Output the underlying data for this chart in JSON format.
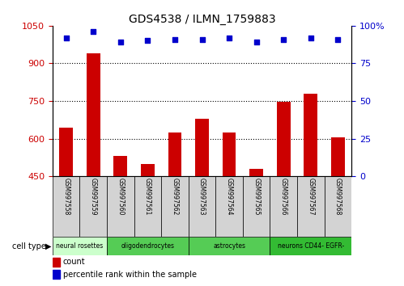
{
  "title": "GDS4538 / ILMN_1759883",
  "samples": [
    "GSM997558",
    "GSM997559",
    "GSM997560",
    "GSM997561",
    "GSM997562",
    "GSM997563",
    "GSM997564",
    "GSM997565",
    "GSM997566",
    "GSM997567",
    "GSM997568"
  ],
  "bar_values": [
    645,
    940,
    530,
    500,
    625,
    680,
    625,
    480,
    748,
    780,
    605
  ],
  "percentile_values": [
    92,
    96,
    89,
    90,
    91,
    91,
    92,
    89,
    91,
    92,
    91
  ],
  "ylim_left": [
    450,
    1050
  ],
  "ylim_right": [
    0,
    100
  ],
  "yticks_left": [
    450,
    600,
    750,
    900,
    1050
  ],
  "yticks_right": [
    0,
    25,
    50,
    75,
    100
  ],
  "bar_color": "#cc0000",
  "dot_color": "#0000cc",
  "bg_color": "#ffffff",
  "cell_types": [
    {
      "label": "neural rosettes",
      "start": 0,
      "end": 2,
      "color": "#ccffcc"
    },
    {
      "label": "oligodendrocytes",
      "start": 2,
      "end": 5,
      "color": "#55cc55"
    },
    {
      "label": "astrocytes",
      "start": 5,
      "end": 8,
      "color": "#55cc55"
    },
    {
      "label": "neurons CD44- EGFR-",
      "start": 8,
      "end": 11,
      "color": "#33bb33"
    }
  ],
  "legend_count_color": "#cc0000",
  "legend_dot_color": "#0000cc",
  "tick_color_left": "#cc0000",
  "tick_color_right": "#0000cc",
  "grid_yticks": [
    600,
    750,
    900
  ],
  "sample_box_color": "#d3d3d3"
}
